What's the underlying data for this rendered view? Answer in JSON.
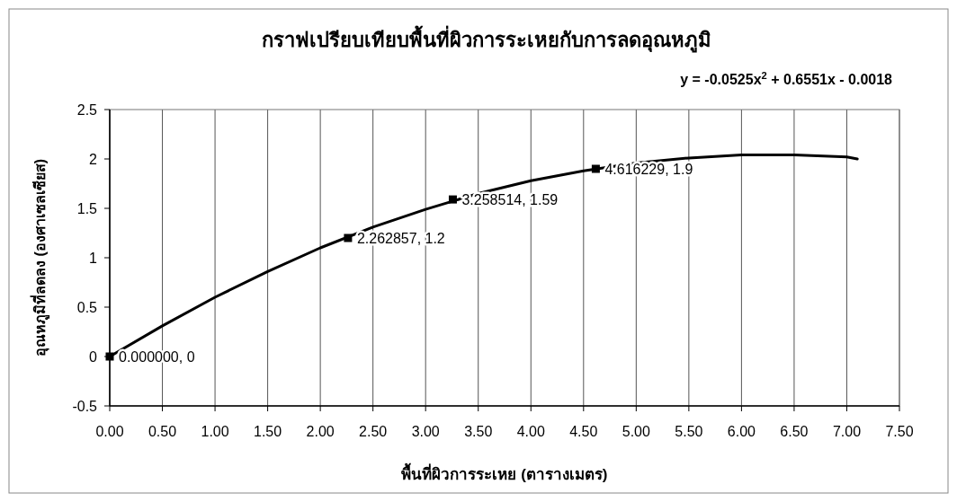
{
  "chart_data": {
    "type": "scatter",
    "title": "กราฟเปรียบเทียบพื้นที่ผิวการระเหยกับการลดอุณหภูมิ",
    "xlabel": "พื้นที่ผิวการระเหย (ตารางเมตร)",
    "ylabel": "อุณหภูมิที่ลดลง (องศาเซลเซียส)",
    "annotations": [
      "y = -0.0525x$^{2}$ + 0.6551x - 0.0018"
    ],
    "xlim": [
      0,
      7.5
    ],
    "ylim": [
      -0.5,
      2.5
    ],
    "xticks": [
      {
        "value": 0,
        "label": "0.00"
      },
      {
        "value": 0.5,
        "label": "0.50"
      },
      {
        "value": 1,
        "label": "1.00"
      },
      {
        "value": 1.5,
        "label": "1.50"
      },
      {
        "value": 2,
        "label": "2.00"
      },
      {
        "value": 2.5,
        "label": "2.50"
      },
      {
        "value": 3,
        "label": "3.00"
      },
      {
        "value": 3.5,
        "label": "3.50"
      },
      {
        "value": 4,
        "label": "4.00"
      },
      {
        "value": 4.5,
        "label": "4.50"
      },
      {
        "value": 5,
        "label": "5.00"
      },
      {
        "value": 5.5,
        "label": "5.50"
      },
      {
        "value": 6,
        "label": "6.00"
      },
      {
        "value": 6.5,
        "label": "6.50"
      },
      {
        "value": 7,
        "label": "7.00"
      },
      {
        "value": 7.5,
        "label": "7.50"
      }
    ],
    "yticks": [
      -0.5,
      0,
      0.5,
      1,
      1.5,
      2,
      2.5
    ],
    "grid": "x",
    "marker": "square",
    "series": [
      {
        "color": "#000000",
        "x": [
          0,
          2.262857,
          3.258514,
          4.616229
        ],
        "values": [
          0,
          1.2,
          1.59,
          1.9
        ],
        "value_labels": [
          "0.000000, 0",
          "2.262857, 1.2",
          "3.258514, 1.59",
          "4.616229, 1.9"
        ]
      },
      {
        "type": "line",
        "color": "#000000",
        "marker": "none",
        "x": [
          0,
          0.5,
          1,
          1.5,
          2,
          2.5,
          3,
          3.5,
          4,
          4.5,
          5,
          5.5,
          6,
          6.5,
          7,
          7.1
        ],
        "values": [
          0,
          0.31,
          0.6,
          0.86,
          1.1,
          1.31,
          1.49,
          1.65,
          1.78,
          1.88,
          1.96,
          2.01,
          2.04,
          2.04,
          2.02,
          2.0
        ]
      }
    ]
  }
}
